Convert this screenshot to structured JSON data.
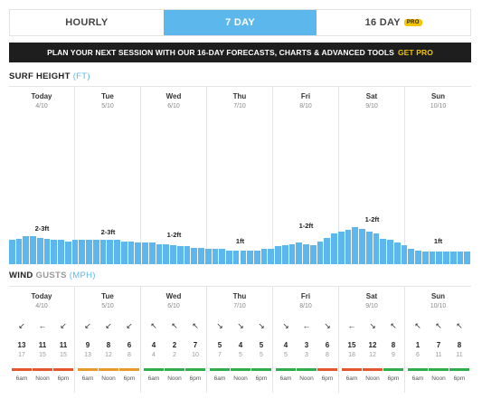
{
  "tabs": [
    {
      "label": "HOURLY",
      "active": false
    },
    {
      "label": "7 DAY",
      "active": true
    },
    {
      "label": "16 DAY",
      "active": false,
      "badge": "PRO"
    }
  ],
  "promo": {
    "text": "PLAN YOUR NEXT SESSION WITH OUR 16-DAY FORECASTS, CHARTS & ADVANCED TOOLS",
    "cta": "GET PRO"
  },
  "surf": {
    "title": "SURF HEIGHT",
    "unit": "(FT)",
    "bar_color": "#5cb8ec",
    "days": [
      {
        "name": "Today",
        "date": "4/10",
        "label": "2-3ft"
      },
      {
        "name": "Tue",
        "date": "5/10",
        "label": "2-3ft"
      },
      {
        "name": "Wed",
        "date": "6/10",
        "label": "1-2ft"
      },
      {
        "name": "Thu",
        "date": "7/10",
        "label": "1ft"
      },
      {
        "name": "Fri",
        "date": "8/10",
        "label": "1-2ft"
      },
      {
        "name": "Sat",
        "date": "9/10",
        "label": "1-2ft"
      },
      {
        "name": "Sun",
        "date": "10/10",
        "label": "1ft"
      }
    ],
    "bars": [
      0.95,
      1.0,
      1.1,
      1.1,
      1.05,
      1.0,
      0.95,
      0.95,
      0.9,
      0.95,
      0.95,
      0.95,
      0.95,
      0.95,
      0.95,
      0.95,
      0.9,
      0.9,
      0.85,
      0.85,
      0.85,
      0.8,
      0.8,
      0.75,
      0.7,
      0.7,
      0.65,
      0.65,
      0.6,
      0.6,
      0.6,
      0.55,
      0.55,
      0.55,
      0.55,
      0.55,
      0.6,
      0.6,
      0.7,
      0.75,
      0.8,
      0.85,
      0.8,
      0.75,
      0.9,
      1.05,
      1.2,
      1.3,
      1.35,
      1.45,
      1.4,
      1.3,
      1.2,
      1.0,
      0.95,
      0.85,
      0.75,
      0.6,
      0.55,
      0.5,
      0.5,
      0.5,
      0.5,
      0.5,
      0.5,
      0.5
    ]
  },
  "wind": {
    "title": "WIND",
    "title_secondary": "GUSTS",
    "unit": "(MPH)",
    "times": [
      "6am",
      "Noon",
      "6pm"
    ],
    "days": [
      {
        "name": "Today",
        "date": "4/10",
        "readings": [
          {
            "arrow": "↙",
            "speed": "13",
            "gust": "17",
            "color": "#e4572e"
          },
          {
            "arrow": "←",
            "speed": "11",
            "gust": "15",
            "color": "#e4572e"
          },
          {
            "arrow": "↙",
            "speed": "11",
            "gust": "15",
            "color": "#e4572e"
          }
        ]
      },
      {
        "name": "Tue",
        "date": "5/10",
        "readings": [
          {
            "arrow": "↙",
            "speed": "9",
            "gust": "13",
            "color": "#e89a2b"
          },
          {
            "arrow": "↙",
            "speed": "8",
            "gust": "12",
            "color": "#e89a2b"
          },
          {
            "arrow": "↙",
            "speed": "6",
            "gust": "8",
            "color": "#e89a2b"
          }
        ]
      },
      {
        "name": "Wed",
        "date": "6/10",
        "readings": [
          {
            "arrow": "↖",
            "speed": "4",
            "gust": "4",
            "color": "#2fae4e"
          },
          {
            "arrow": "↖",
            "speed": "2",
            "gust": "2",
            "color": "#2fae4e"
          },
          {
            "arrow": "↖",
            "speed": "7",
            "gust": "10",
            "color": "#2fae4e"
          }
        ]
      },
      {
        "name": "Thu",
        "date": "7/10",
        "readings": [
          {
            "arrow": "↘",
            "speed": "5",
            "gust": "7",
            "color": "#2fae4e"
          },
          {
            "arrow": "↘",
            "speed": "4",
            "gust": "5",
            "color": "#2fae4e"
          },
          {
            "arrow": "↘",
            "speed": "5",
            "gust": "5",
            "color": "#2fae4e"
          }
        ]
      },
      {
        "name": "Fri",
        "date": "8/10",
        "readings": [
          {
            "arrow": "↘",
            "speed": "4",
            "gust": "5",
            "color": "#2fae4e"
          },
          {
            "arrow": "←",
            "speed": "3",
            "gust": "3",
            "color": "#2fae4e"
          },
          {
            "arrow": "↘",
            "speed": "6",
            "gust": "8",
            "color": "#e4572e"
          }
        ]
      },
      {
        "name": "Sat",
        "date": "9/10",
        "readings": [
          {
            "arrow": "←",
            "speed": "15",
            "gust": "18",
            "color": "#e4572e"
          },
          {
            "arrow": "↘",
            "speed": "12",
            "gust": "12",
            "color": "#e4572e"
          },
          {
            "arrow": "↖",
            "speed": "8",
            "gust": "9",
            "color": "#2fae4e"
          }
        ]
      },
      {
        "name": "Sun",
        "date": "10/10",
        "readings": [
          {
            "arrow": "↖",
            "speed": "1",
            "gust": "6",
            "color": "#2fae4e"
          },
          {
            "arrow": "↖",
            "speed": "7",
            "gust": "11",
            "color": "#2fae4e"
          },
          {
            "arrow": "↖",
            "speed": "8",
            "gust": "11",
            "color": "#2fae4e"
          }
        ]
      }
    ]
  }
}
